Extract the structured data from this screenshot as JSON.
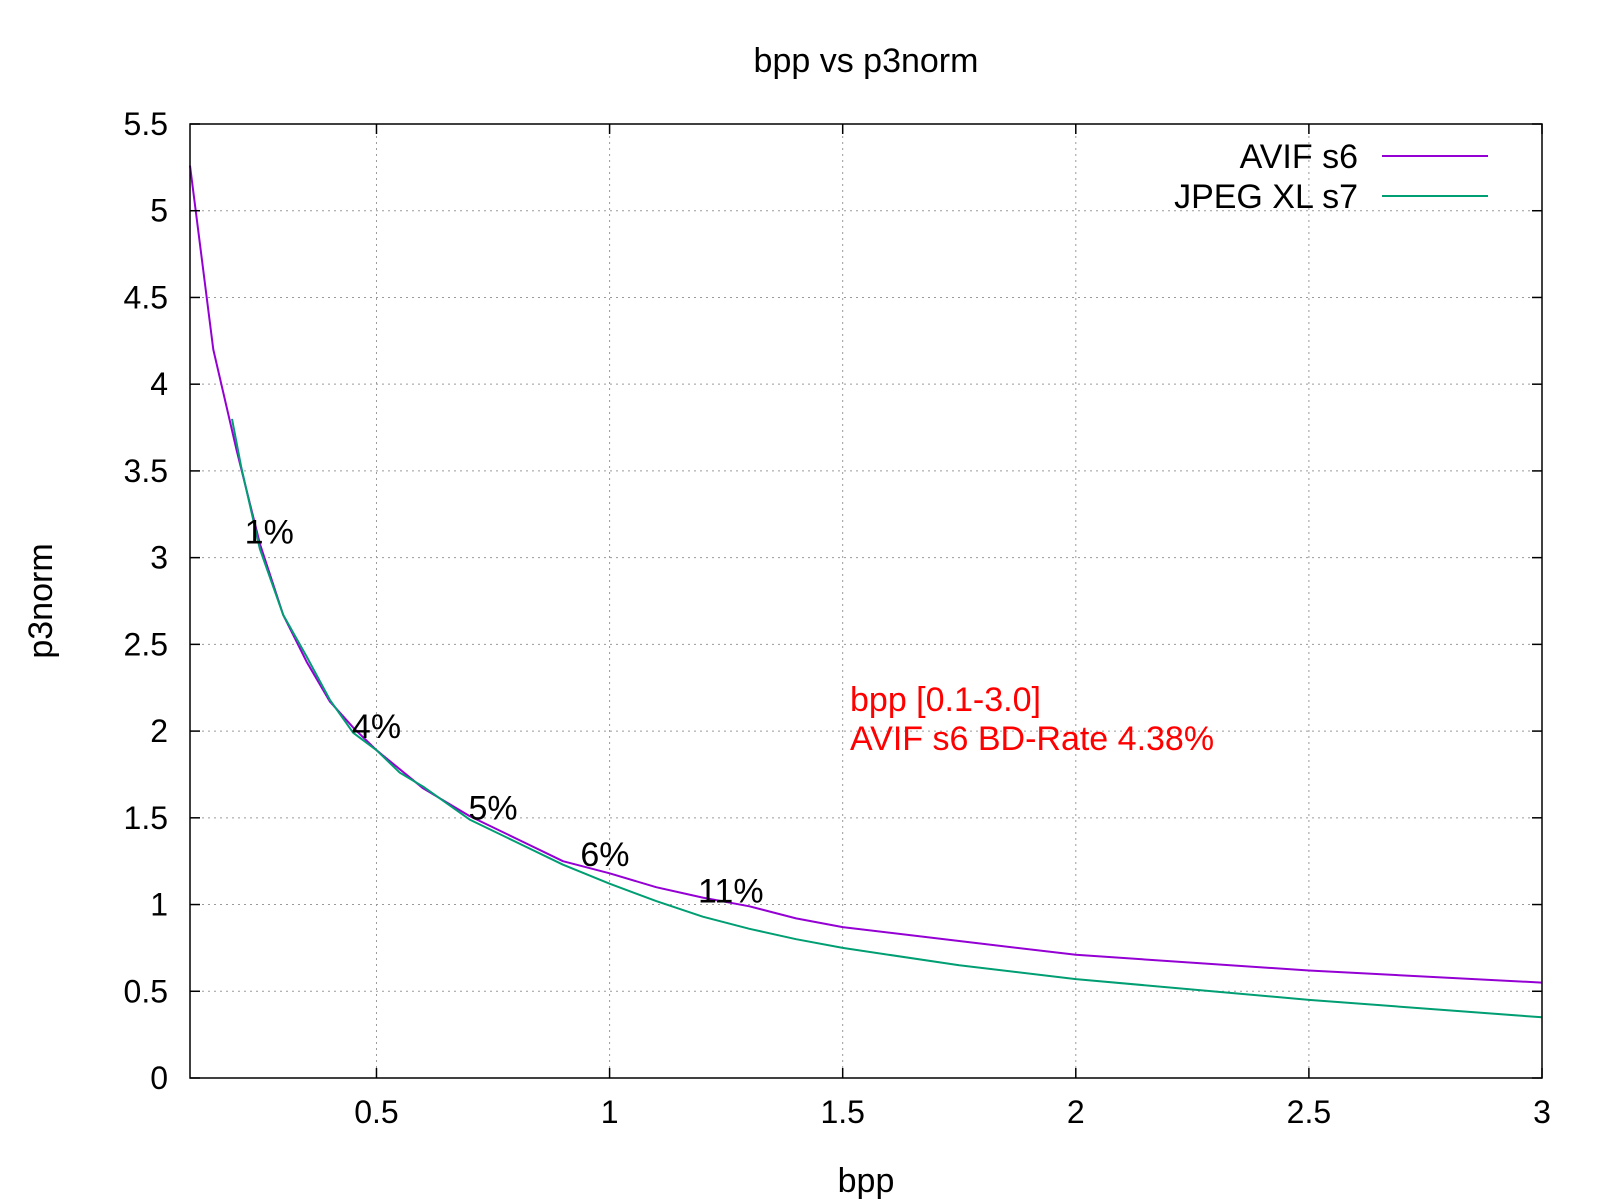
{
  "chart_data": {
    "type": "line",
    "title": "bpp vs p3norm",
    "xlabel": "bpp",
    "ylabel": "p3norm",
    "xlim": [
      0.1,
      3.0
    ],
    "ylim": [
      0,
      5.5
    ],
    "xticks": [
      0.5,
      1,
      1.5,
      2,
      2.5,
      3
    ],
    "xtick_labels": [
      "0.5",
      "1",
      "1.5",
      "2",
      "2.5",
      "3"
    ],
    "yticks": [
      0,
      0.5,
      1,
      1.5,
      2,
      2.5,
      3,
      3.5,
      4,
      4.5,
      5,
      5.5
    ],
    "ytick_labels": [
      "0",
      "0.5",
      "1",
      "1.5",
      "2",
      "2.5",
      "3",
      "3.5",
      "4",
      "4.5",
      "5",
      "5.5"
    ],
    "grid": true,
    "legend_position": "top-right",
    "series": [
      {
        "name": "AVIF s6",
        "color": "#9400d3",
        "points": [
          [
            0.1,
            5.26
          ],
          [
            0.15,
            4.2
          ],
          [
            0.2,
            3.62
          ],
          [
            0.25,
            3.08
          ],
          [
            0.3,
            2.67
          ],
          [
            0.35,
            2.4
          ],
          [
            0.4,
            2.17
          ],
          [
            0.45,
            2.02
          ],
          [
            0.5,
            1.89
          ],
          [
            0.6,
            1.67
          ],
          [
            0.7,
            1.51
          ],
          [
            0.8,
            1.38
          ],
          [
            0.9,
            1.25
          ],
          [
            1.0,
            1.18
          ],
          [
            1.1,
            1.1
          ],
          [
            1.2,
            1.04
          ],
          [
            1.3,
            0.99
          ],
          [
            1.4,
            0.92
          ],
          [
            1.5,
            0.87
          ],
          [
            1.75,
            0.79
          ],
          [
            2.0,
            0.71
          ],
          [
            2.5,
            0.62
          ],
          [
            3.0,
            0.55
          ]
        ]
      },
      {
        "name": "JPEG XL s7",
        "color": "#009e73",
        "points": [
          [
            0.19,
            3.8
          ],
          [
            0.21,
            3.52
          ],
          [
            0.25,
            3.05
          ],
          [
            0.3,
            2.67
          ],
          [
            0.35,
            2.43
          ],
          [
            0.4,
            2.18
          ],
          [
            0.45,
            1.99
          ],
          [
            0.5,
            1.89
          ],
          [
            0.55,
            1.76
          ],
          [
            0.6,
            1.68
          ],
          [
            0.7,
            1.49
          ],
          [
            0.8,
            1.36
          ],
          [
            0.9,
            1.23
          ],
          [
            1.0,
            1.12
          ],
          [
            1.1,
            1.02
          ],
          [
            1.2,
            0.93
          ],
          [
            1.3,
            0.86
          ],
          [
            1.4,
            0.8
          ],
          [
            1.5,
            0.75
          ],
          [
            1.75,
            0.65
          ],
          [
            2.0,
            0.57
          ],
          [
            2.5,
            0.45
          ],
          [
            3.0,
            0.35
          ]
        ]
      }
    ],
    "annotations": [
      {
        "text": "1%",
        "x": 0.27,
        "y": 3.15
      },
      {
        "text": "4%",
        "x": 0.5,
        "y": 2.03
      },
      {
        "text": "5%",
        "x": 0.75,
        "y": 1.56
      },
      {
        "text": "6%",
        "x": 0.99,
        "y": 1.29
      },
      {
        "text": "11%",
        "x": 1.26,
        "y": 1.08
      }
    ],
    "note_lines": [
      "bpp [0.1-3.0]",
      "AVIF s6 BD-Rate 4.38%"
    ]
  }
}
